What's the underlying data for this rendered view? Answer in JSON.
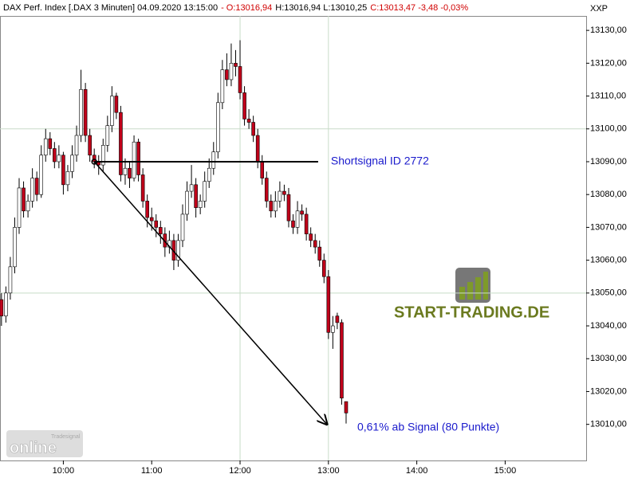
{
  "chart_data": {
    "type": "candlestick",
    "header": [
      {
        "text": "DAX Perf. Index [.DAX  3 Minuten] 04.09.2020 13:15:00",
        "color": "#000000"
      },
      {
        "text": "- O:13016,94",
        "color": "#d00000"
      },
      {
        "text": "H:13016,94 L:13010,25",
        "color": "#000000"
      },
      {
        "text": "C:13013,47 -3,48 -0,03%",
        "color": "#d00000"
      }
    ],
    "axis_label": "XXP",
    "up_color": "#ffffff",
    "down_color": "#c0001a",
    "x": [
      "09:18",
      "09:21",
      "09:24",
      "09:27",
      "09:30",
      "09:33",
      "09:36",
      "09:39",
      "09:42",
      "09:45",
      "09:48",
      "09:51",
      "09:54",
      "09:57",
      "10:00",
      "10:03",
      "10:06",
      "10:09",
      "10:12",
      "10:15",
      "10:18",
      "10:21",
      "10:24",
      "10:27",
      "10:30",
      "10:33",
      "10:36",
      "10:39",
      "10:42",
      "10:45",
      "10:48",
      "10:51",
      "10:54",
      "10:57",
      "11:00",
      "11:03",
      "11:06",
      "11:09",
      "11:12",
      "11:15",
      "11:18",
      "11:21",
      "11:24",
      "11:27",
      "11:30",
      "11:33",
      "11:36",
      "11:39",
      "11:42",
      "11:45",
      "11:48",
      "11:51",
      "11:54",
      "11:57",
      "12:00",
      "12:03",
      "12:06",
      "12:09",
      "12:12",
      "12:15",
      "12:18",
      "12:21",
      "12:24",
      "12:27",
      "12:30",
      "12:33",
      "12:36",
      "12:39",
      "12:42",
      "12:45",
      "12:48",
      "12:51",
      "12:54",
      "12:57",
      "13:00",
      "13:03",
      "13:06",
      "13:09",
      "13:12"
    ],
    "open": [
      13048,
      13043,
      13050,
      13058,
      13070,
      13082,
      13075,
      13078,
      13085,
      13080,
      13092,
      13097,
      13094,
      13090,
      13092,
      13083,
      13087,
      13092,
      13098,
      13112,
      13098,
      13092,
      13090,
      13089,
      13095,
      13101,
      13110,
      13105,
      13086,
      13088,
      13085,
      13096,
      13086,
      13078,
      13073,
      13072,
      13070,
      13068,
      13064,
      13066,
      13060,
      13066,
      13074,
      13081,
      13083,
      13076,
      13078,
      13084,
      13088,
      13093,
      13108,
      13118,
      13115,
      13120,
      13119,
      13111,
      13103,
      13102,
      13098,
      13090,
      13085,
      13078,
      13075,
      13078,
      13081,
      13080,
      13072,
      13070,
      13075,
      13074,
      13068,
      13066,
      13064,
      13060,
      13055,
      13038,
      13043,
      13041,
      13016.94
    ],
    "high": [
      13050,
      13052,
      13061,
      13073,
      13085,
      13084,
      13080,
      13088,
      13087,
      13095,
      13100,
      13099,
      13096,
      13095,
      13093,
      13089,
      13095,
      13101,
      13118,
      13114,
      13100,
      13094,
      13092,
      13097,
      13104,
      13113,
      13111,
      13107,
      13091,
      13090,
      13098,
      13097,
      13088,
      13080,
      13076,
      13074,
      13072,
      13070,
      13069,
      13068,
      13068,
      13077,
      13084,
      13089,
      13085,
      13080,
      13087,
      13091,
      13096,
      13111,
      13121,
      13123,
      13126,
      13124,
      13127,
      13113,
      13106,
      13104,
      13100,
      13092,
      13087,
      13080,
      13081,
      13084,
      13083,
      13082,
      13074,
      13078,
      13077,
      13076,
      13070,
      13068,
      13066,
      13062,
      13057,
      13043,
      13044,
      13042,
      13016.94
    ],
    "low": [
      13040,
      13041,
      13048,
      13056,
      13068,
      13073,
      13073,
      13076,
      13078,
      13079,
      13090,
      13092,
      13088,
      13088,
      13080,
      13081,
      13085,
      13090,
      13096,
      13096,
      13090,
      13088,
      13086,
      13087,
      13093,
      13099,
      13103,
      13084,
      13083,
      13082,
      13084,
      13084,
      13076,
      13070,
      13069,
      13067,
      13065,
      13061,
      13062,
      13057,
      13058,
      13064,
      13072,
      13079,
      13073,
      13074,
      13076,
      13082,
      13086,
      13091,
      13106,
      13113,
      13113,
      13116,
      13109,
      13101,
      13100,
      13096,
      13088,
      13083,
      13076,
      13073,
      13073,
      13076,
      13078,
      13070,
      13068,
      13068,
      13072,
      13066,
      13064,
      13062,
      13058,
      13053,
      13036,
      13033,
      13039,
      13016,
      13010.25
    ],
    "close": [
      13043,
      13050,
      13058,
      13070,
      13082,
      13075,
      13078,
      13085,
      13080,
      13092,
      13097,
      13094,
      13090,
      13092,
      13083,
      13087,
      13092,
      13098,
      13112,
      13098,
      13092,
      13090,
      13089,
      13095,
      13101,
      13110,
      13105,
      13086,
      13088,
      13085,
      13096,
      13086,
      13078,
      13073,
      13072,
      13070,
      13068,
      13064,
      13066,
      13060,
      13066,
      13074,
      13081,
      13083,
      13076,
      13078,
      13084,
      13088,
      13093,
      13108,
      13118,
      13115,
      13120,
      13119,
      13111,
      13103,
      13102,
      13098,
      13090,
      13085,
      13078,
      13075,
      13078,
      13081,
      13080,
      13072,
      13070,
      13075,
      13074,
      13068,
      13066,
      13064,
      13060,
      13055,
      13038,
      13040,
      13041,
      13018,
      13013.47
    ],
    "xlim": [
      "09:17",
      "15:55"
    ],
    "xticks": [
      "10:00",
      "11:00",
      "12:00",
      "13:00",
      "14:00",
      "15:00"
    ],
    "xgrid": [
      "12:00",
      "13:00"
    ],
    "ylim": [
      12999,
      13134.4
    ],
    "yticks": [
      {
        "value": 13010,
        "label": "13010,00"
      },
      {
        "value": 13020,
        "label": "13020,00"
      },
      {
        "value": 13030,
        "label": "13030,00"
      },
      {
        "value": 13040,
        "label": "13040,00"
      },
      {
        "value": 13050,
        "label": "13050,00"
      },
      {
        "value": 13060,
        "label": "13060,00"
      },
      {
        "value": 13070,
        "label": "13070,00"
      },
      {
        "value": 13080,
        "label": "13080,00"
      },
      {
        "value": 13090,
        "label": "13090,00"
      },
      {
        "value": 13100,
        "label": "13100,00"
      },
      {
        "value": 13110,
        "label": "13110,00"
      },
      {
        "value": 13120,
        "label": "13120,00"
      },
      {
        "value": 13130,
        "label": "13130,00"
      }
    ],
    "ygrid": [
      13050,
      13100
    ],
    "signal": {
      "label": "Shortsignal ID 2772",
      "price": 13090,
      "start": "10:21",
      "end": "12:53"
    },
    "target": {
      "label": "0,61% ab Signal (80 Punkte)",
      "price": 13010,
      "time": "12:59"
    },
    "logo": "START-TRADING.DE",
    "watermark": {
      "brand": "Tradesignal",
      "word": "online"
    }
  }
}
